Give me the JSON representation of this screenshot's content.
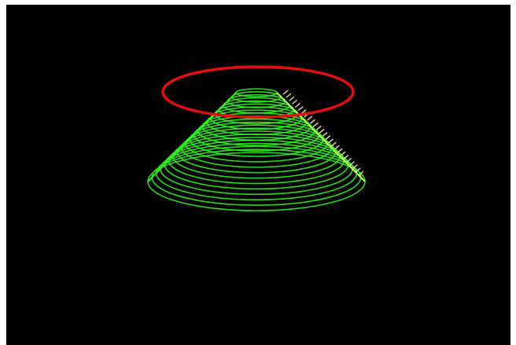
{
  "scene": {
    "background_color": "#000000",
    "frame_color": "#ffffff",
    "cone_color": "#33ee22",
    "cone_highlight_color": "#bbff66",
    "ring_color": "#dd1111",
    "normal_tick_color": "#e8e0a0",
    "cone_ring_count": 22,
    "normal_tick_count": 26
  }
}
